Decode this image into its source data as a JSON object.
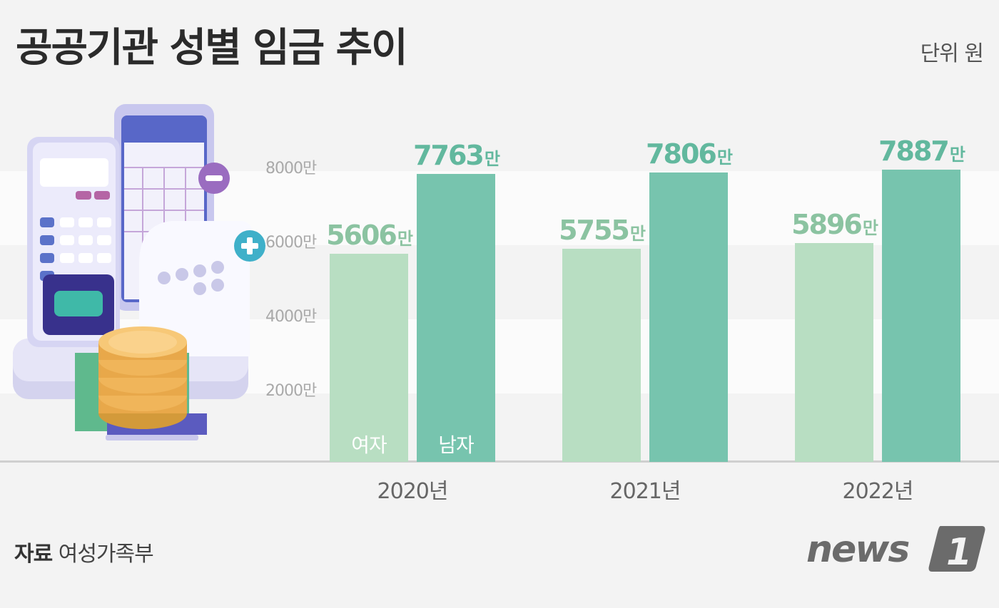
{
  "title": "공공기관 성별 임금 추이",
  "unit": "단위 원",
  "source_label": "자료",
  "source": "여성가족부",
  "logo_text": "news 1",
  "colors": {
    "female": "#b8dec2",
    "male": "#77c4ae",
    "female_label": "#8bc3a1",
    "male_label": "#62b89e",
    "background": "#f3f3f3"
  },
  "illustration": "calculator-documents-coins-icon",
  "chart_data": {
    "type": "bar",
    "categories": [
      "2020년",
      "2021년",
      "2022년"
    ],
    "series": [
      {
        "name": "여자",
        "values": [
          5606,
          5755,
          5896
        ]
      },
      {
        "name": "남자",
        "values": [
          7763,
          7806,
          7887
        ]
      }
    ],
    "value_labels": {
      "여자": [
        "5606",
        "5755",
        "5896"
      ],
      "남자": [
        "7763",
        "7806",
        "7887"
      ]
    },
    "value_suffix": "만",
    "yticks": [
      "2000만",
      "4000만",
      "6000만",
      "8000만"
    ],
    "ytick_values": [
      2000,
      4000,
      6000,
      8000
    ],
    "ylim": [
      0,
      8000
    ],
    "legend": "inside-bars",
    "grid": true
  }
}
